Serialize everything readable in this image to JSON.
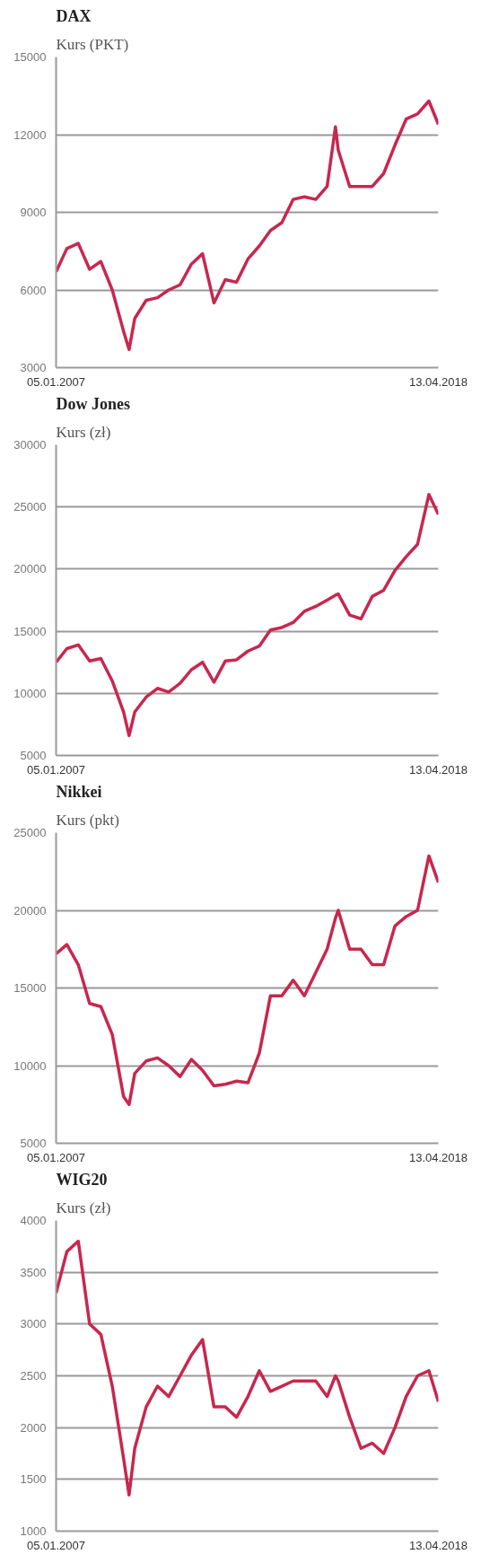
{
  "chart_data": [
    {
      "type": "line",
      "title": "DAX",
      "subtitle": "Kurs (PKT)",
      "x": [
        "2007-01-05",
        "2007-05",
        "2007-09",
        "2008-01",
        "2008-05",
        "2008-09",
        "2009-01",
        "2009-03",
        "2009-05",
        "2009-09",
        "2010-01",
        "2010-05",
        "2010-09",
        "2011-01",
        "2011-05",
        "2011-09",
        "2012-01",
        "2012-05",
        "2012-09",
        "2013-01",
        "2013-05",
        "2013-09",
        "2014-01",
        "2014-05",
        "2014-09",
        "2015-01",
        "2015-04",
        "2015-05",
        "2015-09",
        "2016-01",
        "2016-05",
        "2016-09",
        "2017-01",
        "2017-05",
        "2017-09",
        "2018-01",
        "2018-04-13"
      ],
      "series": [
        {
          "color": "#c8274f",
          "values": [
            6700,
            7600,
            7800,
            6800,
            7100,
            6000,
            4400,
            3700,
            4900,
            5600,
            5700,
            6000,
            6200,
            7000,
            7400,
            5500,
            6400,
            6300,
            7200,
            7700,
            8300,
            8600,
            9500,
            9600,
            9500,
            10000,
            12300,
            11400,
            10000,
            10000,
            10000,
            10500,
            11600,
            12600,
            12800,
            13300,
            12400
          ]
        }
      ],
      "xlim": [
        "2007-01-05",
        "2018-04-13"
      ],
      "xticks": [
        {
          "value": "2007-01-05",
          "label": "05.01.2007"
        },
        {
          "value": "2018-04-13",
          "label": "13.04.2018"
        }
      ],
      "ylim": [
        3000,
        15000
      ],
      "yticks": [
        3000,
        6000,
        9000,
        12000,
        15000
      ],
      "grid": "y",
      "marker": "none",
      "line_style": "solid"
    },
    {
      "type": "line",
      "title": "Dow Jones",
      "subtitle": "Kurs (zł)",
      "x": [
        "2007-01-05",
        "2007-05",
        "2007-09",
        "2008-01",
        "2008-05",
        "2008-09",
        "2009-01",
        "2009-03",
        "2009-05",
        "2009-09",
        "2010-01",
        "2010-05",
        "2010-09",
        "2011-01",
        "2011-05",
        "2011-09",
        "2012-01",
        "2012-05",
        "2012-09",
        "2013-01",
        "2013-05",
        "2013-09",
        "2014-01",
        "2014-05",
        "2014-09",
        "2015-01",
        "2015-04",
        "2015-05",
        "2015-09",
        "2016-01",
        "2016-05",
        "2016-09",
        "2017-01",
        "2017-05",
        "2017-09",
        "2018-01",
        "2018-04-13"
      ],
      "series": [
        {
          "color": "#c8274f",
          "values": [
            12500,
            13600,
            13900,
            12600,
            12800,
            11000,
            8500,
            6600,
            8500,
            9700,
            10400,
            10100,
            10800,
            11900,
            12500,
            10900,
            12600,
            12700,
            13400,
            13800,
            15100,
            15300,
            15700,
            16600,
            17000,
            17500,
            17900,
            18000,
            16300,
            16000,
            17800,
            18300,
            19900,
            21000,
            22000,
            26000,
            24400
          ]
        }
      ],
      "xlim": [
        "2007-01-05",
        "2018-04-13"
      ],
      "xticks": [
        {
          "value": "2007-01-05",
          "label": "05.01.2007"
        },
        {
          "value": "2018-04-13",
          "label": "13.04.2018"
        }
      ],
      "ylim": [
        5000,
        30000
      ],
      "yticks": [
        5000,
        10000,
        15000,
        20000,
        25000,
        30000
      ],
      "grid": "y",
      "marker": "none",
      "line_style": "solid"
    },
    {
      "type": "line",
      "title": "Nikkei",
      "subtitle": "Kurs (pkt)",
      "x": [
        "2007-01-05",
        "2007-05",
        "2007-09",
        "2008-01",
        "2008-05",
        "2008-09",
        "2009-01",
        "2009-03",
        "2009-05",
        "2009-09",
        "2010-01",
        "2010-05",
        "2010-09",
        "2011-01",
        "2011-05",
        "2011-09",
        "2012-01",
        "2012-05",
        "2012-09",
        "2013-01",
        "2013-05",
        "2013-09",
        "2014-01",
        "2014-05",
        "2014-09",
        "2015-01",
        "2015-04",
        "2015-05",
        "2015-09",
        "2016-01",
        "2016-05",
        "2016-09",
        "2017-01",
        "2017-05",
        "2017-09",
        "2018-01",
        "2018-04-13"
      ],
      "series": [
        {
          "color": "#c8274f",
          "values": [
            17200,
            17800,
            16500,
            14000,
            13800,
            12000,
            8000,
            7500,
            9500,
            10300,
            10500,
            10000,
            9300,
            10400,
            9700,
            8700,
            8800,
            9000,
            8900,
            10800,
            14500,
            14500,
            15500,
            14500,
            16000,
            17500,
            19500,
            20000,
            17500,
            17500,
            16500,
            16500,
            19000,
            19600,
            20000,
            23500,
            21800
          ]
        }
      ],
      "xlim": [
        "2007-01-05",
        "2018-04-13"
      ],
      "xticks": [
        {
          "value": "2007-01-05",
          "label": "05.01.2007"
        },
        {
          "value": "2018-04-13",
          "label": "13.04.2018"
        }
      ],
      "ylim": [
        5000,
        25000
      ],
      "yticks": [
        5000,
        10000,
        15000,
        20000,
        25000
      ],
      "grid": "y",
      "marker": "none",
      "line_style": "solid"
    },
    {
      "type": "line",
      "title": "WIG20",
      "subtitle": "Kurs (zł)",
      "x": [
        "2007-01-05",
        "2007-05",
        "2007-09",
        "2008-01",
        "2008-05",
        "2008-09",
        "2009-01",
        "2009-03",
        "2009-05",
        "2009-09",
        "2010-01",
        "2010-05",
        "2010-09",
        "2011-01",
        "2011-05",
        "2011-09",
        "2012-01",
        "2012-05",
        "2012-09",
        "2013-01",
        "2013-05",
        "2013-09",
        "2014-01",
        "2014-05",
        "2014-09",
        "2015-01",
        "2015-04",
        "2015-05",
        "2015-09",
        "2016-01",
        "2016-05",
        "2016-09",
        "2017-01",
        "2017-05",
        "2017-09",
        "2018-01",
        "2018-04-13"
      ],
      "series": [
        {
          "color": "#c8274f",
          "values": [
            3300,
            3700,
            3800,
            3000,
            2900,
            2400,
            1700,
            1350,
            1800,
            2200,
            2400,
            2300,
            2500,
            2700,
            2850,
            2200,
            2200,
            2100,
            2300,
            2550,
            2350,
            2400,
            2450,
            2450,
            2450,
            2300,
            2500,
            2450,
            2100,
            1800,
            1850,
            1750,
            2000,
            2300,
            2500,
            2550,
            2250
          ]
        }
      ],
      "xlim": [
        "2007-01-05",
        "2018-04-13"
      ],
      "xticks": [
        {
          "value": "2007-01-05",
          "label": "05.01.2007"
        },
        {
          "value": "2018-04-13",
          "label": "13.04.2018"
        }
      ],
      "ylim": [
        1000,
        4000
      ],
      "yticks": [
        1000,
        1500,
        2000,
        2500,
        3000,
        3500,
        4000
      ],
      "grid": "y",
      "marker": "none",
      "line_style": "solid"
    }
  ]
}
